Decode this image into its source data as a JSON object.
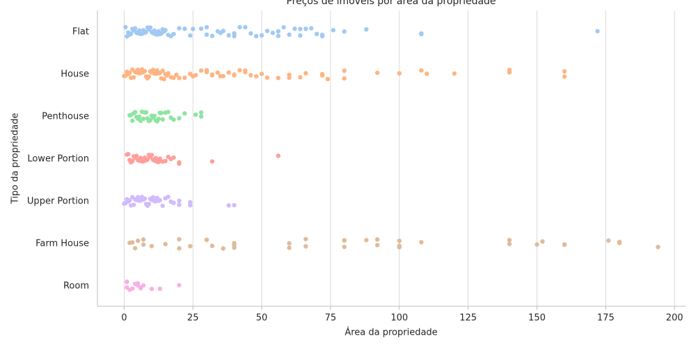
{
  "chart_data": {
    "type": "strip",
    "title": "Preços de imóveis por área da propriedade",
    "x_label": "Área da propriedade",
    "y_label": "Tipo da propriedade",
    "xlim": [
      -9.7,
      204
    ],
    "xticks": [
      0,
      25,
      50,
      75,
      100,
      125,
      150,
      175,
      200
    ],
    "grid": true,
    "categories": [
      "Flat",
      "House",
      "Penthouse",
      "Lower Portion",
      "Upper Portion",
      "Farm House",
      "Room"
    ],
    "colors": [
      "#a1c9f4",
      "#ffb482",
      "#8de5a1",
      "#ff9f9b",
      "#d0bbff",
      "#debb9b",
      "#fab0e4"
    ],
    "values": [
      [
        0.5,
        1,
        1.5,
        2,
        2.5,
        3,
        3.5,
        4,
        4.5,
        5,
        5.5,
        6,
        6.5,
        7,
        7.5,
        8,
        8.5,
        9,
        9.5,
        10,
        10.5,
        11,
        11.5,
        12,
        12.5,
        13,
        13.5,
        14,
        14.5,
        15,
        16,
        17,
        18,
        20,
        22,
        24,
        25,
        28,
        30,
        30,
        32,
        34,
        35,
        36,
        38,
        40,
        40,
        42,
        44,
        46,
        48,
        50,
        52,
        54,
        56,
        56,
        58,
        60,
        62,
        64,
        64,
        66,
        68,
        70,
        72,
        72,
        76,
        80,
        88,
        108,
        108,
        172
      ],
      [
        0,
        0.5,
        1,
        1.5,
        2,
        2.5,
        3,
        3.5,
        4,
        4.5,
        5,
        5.5,
        6,
        6.5,
        7,
        7.5,
        8,
        8.5,
        9,
        9.5,
        10,
        10.5,
        11,
        11.5,
        12,
        12.5,
        13,
        13.5,
        14,
        14.5,
        15,
        15.5,
        16,
        17,
        18,
        19,
        20,
        22,
        24,
        25,
        26,
        28,
        30,
        30,
        32,
        32,
        34,
        35,
        36,
        38,
        40,
        40,
        42,
        44,
        44,
        46,
        48,
        50,
        52,
        56,
        60,
        60,
        64,
        66,
        72,
        72,
        74,
        80,
        80,
        92,
        100,
        108,
        110,
        120,
        140,
        140,
        160,
        160
      ],
      [
        2,
        2.5,
        3,
        3.5,
        4,
        4.5,
        5,
        5.5,
        6,
        6.5,
        7,
        7.5,
        8,
        8.5,
        9,
        9.5,
        10,
        10.5,
        11,
        11.5,
        12,
        12.5,
        13,
        13.5,
        14,
        15,
        16,
        17,
        18,
        20,
        22,
        26,
        28,
        28
      ],
      [
        1,
        1.5,
        2,
        2.5,
        3,
        3.5,
        4,
        4.5,
        5,
        5.5,
        6,
        6.5,
        7,
        7.5,
        8,
        8.5,
        9,
        9.5,
        10,
        10.5,
        11,
        11.5,
        12,
        12.5,
        13,
        14,
        15,
        16,
        17,
        18,
        20,
        20,
        32,
        56
      ],
      [
        0,
        0.5,
        1,
        1.5,
        2,
        2.5,
        3,
        3.5,
        4,
        4.5,
        5,
        5.5,
        6,
        6.5,
        7,
        7.5,
        8,
        8.5,
        9,
        9.5,
        10,
        10.5,
        11,
        11.5,
        12,
        12.5,
        13,
        14,
        15,
        16,
        17,
        18,
        20,
        20,
        24,
        24,
        38,
        40
      ],
      [
        2,
        3,
        4,
        5,
        7,
        7,
        10,
        15,
        20,
        20,
        24,
        30,
        30,
        32,
        36,
        40,
        40,
        40,
        60,
        60,
        66,
        66,
        80,
        80,
        80,
        88,
        92,
        92,
        100,
        100,
        100,
        108,
        140,
        140,
        150,
        152,
        160,
        160,
        176,
        180,
        180,
        194
      ],
      [
        1,
        1,
        1,
        2,
        3,
        4,
        5,
        5,
        6,
        6,
        7,
        10,
        13,
        20
      ]
    ]
  }
}
